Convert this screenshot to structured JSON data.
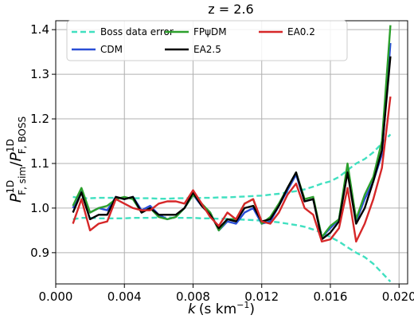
{
  "chart_data": {
    "type": "line",
    "title": "z = 2.6",
    "xlabel": "k (s km⁻¹)",
    "xlabel_parts": {
      "symbol": "k",
      "unit": "(s km",
      "exponent": "−1",
      "close": ")"
    },
    "ylabel_parts": {
      "p1": "P",
      "sup1": "1D",
      "sub1": "F, sim",
      "slash": "/",
      "p2": "P",
      "sup2": "1D",
      "sub2": "F, BOSS"
    },
    "xlim": [
      0.0,
      0.0205
    ],
    "ylim": [
      0.83,
      1.42
    ],
    "xticks": [
      0.0,
      0.004,
      0.008,
      0.012,
      0.016,
      0.02
    ],
    "xtick_labels": [
      "0.000",
      "0.004",
      "0.008",
      "0.012",
      "0.016",
      "0.020"
    ],
    "yticks": [
      0.9,
      1.0,
      1.1,
      1.2,
      1.3,
      1.4
    ],
    "ytick_labels": [
      "0.9",
      "1.0",
      "1.1",
      "1.2",
      "1.3",
      "1.4"
    ],
    "grid": true,
    "legend_position": "top",
    "x": [
      0.001,
      0.0015,
      0.002,
      0.0025,
      0.003,
      0.0035,
      0.004,
      0.0045,
      0.005,
      0.0055,
      0.006,
      0.0065,
      0.007,
      0.0075,
      0.008,
      0.0085,
      0.009,
      0.0095,
      0.01,
      0.0105,
      0.011,
      0.0115,
      0.012,
      0.0125,
      0.013,
      0.0135,
      0.014,
      0.0145,
      0.015,
      0.0155,
      0.016,
      0.0165,
      0.017,
      0.0175,
      0.018,
      0.0185,
      0.019,
      0.0195
    ],
    "series": [
      {
        "name": "Boss data error",
        "color": "#40e0c0",
        "dash": true,
        "values_upper": [
          1.025,
          1.022,
          1.022,
          1.023,
          1.023,
          1.023,
          1.023,
          1.022,
          1.022,
          1.022,
          1.021,
          1.021,
          1.022,
          1.022,
          1.022,
          1.023,
          1.023,
          1.024,
          1.024,
          1.025,
          1.026,
          1.027,
          1.028,
          1.03,
          1.032,
          1.035,
          1.038,
          1.042,
          1.048,
          1.055,
          1.06,
          1.07,
          1.085,
          1.1,
          1.11,
          1.125,
          1.145,
          1.165
        ],
        "values_lower": [
          0.975,
          0.978,
          0.978,
          0.977,
          0.977,
          0.977,
          0.977,
          0.978,
          0.978,
          0.978,
          0.979,
          0.979,
          0.978,
          0.978,
          0.978,
          0.977,
          0.977,
          0.976,
          0.976,
          0.975,
          0.974,
          0.973,
          0.972,
          0.97,
          0.968,
          0.965,
          0.962,
          0.958,
          0.952,
          0.945,
          0.935,
          0.925,
          0.912,
          0.9,
          0.89,
          0.875,
          0.855,
          0.835
        ]
      },
      {
        "name": "CDM",
        "color": "#2a4fd6",
        "values": [
          1.0,
          1.04,
          0.99,
          1.0,
          0.995,
          1.025,
          1.02,
          1.025,
          0.995,
          1.005,
          0.985,
          0.975,
          0.98,
          1.0,
          1.03,
          1.005,
          0.99,
          0.95,
          0.97,
          0.965,
          0.99,
          1.0,
          0.965,
          0.97,
          1.005,
          1.04,
          1.075,
          1.015,
          1.02,
          0.935,
          0.955,
          0.975,
          1.09,
          0.97,
          1.02,
          1.06,
          1.12,
          1.37
        ]
      },
      {
        "name": "FPψDM",
        "color": "#2ca02c",
        "values": [
          1.005,
          1.045,
          0.99,
          1.0,
          1.005,
          1.02,
          1.025,
          1.02,
          0.99,
          1.0,
          0.98,
          0.975,
          0.98,
          1.0,
          1.03,
          1.01,
          0.99,
          0.95,
          0.975,
          0.975,
          1.01,
          1.02,
          0.965,
          0.98,
          1.01,
          1.045,
          1.08,
          1.02,
          1.025,
          0.935,
          0.96,
          0.975,
          1.1,
          0.975,
          1.03,
          1.07,
          1.15,
          1.41
        ]
      },
      {
        "name": "EA2.5",
        "color": "#000000",
        "values": [
          0.99,
          1.035,
          0.975,
          0.985,
          0.985,
          1.025,
          1.02,
          1.025,
          0.99,
          1.0,
          0.985,
          0.985,
          0.985,
          1.0,
          1.035,
          1.005,
          0.985,
          0.955,
          0.975,
          0.97,
          1.0,
          1.005,
          0.97,
          0.975,
          1.005,
          1.045,
          1.08,
          1.015,
          1.02,
          0.93,
          0.945,
          0.97,
          1.08,
          0.965,
          1.0,
          1.06,
          1.13,
          1.34
        ]
      },
      {
        "name": "EA0.2",
        "color": "#d62728",
        "values": [
          0.965,
          1.02,
          0.95,
          0.965,
          0.97,
          1.02,
          1.01,
          1.0,
          0.995,
          0.995,
          1.01,
          1.015,
          1.015,
          1.01,
          1.04,
          1.01,
          0.98,
          0.96,
          0.99,
          0.975,
          1.01,
          1.02,
          0.97,
          0.965,
          0.99,
          1.03,
          1.055,
          1.0,
          0.985,
          0.925,
          0.93,
          0.955,
          1.045,
          0.925,
          0.965,
          1.02,
          1.09,
          1.25
        ]
      }
    ]
  }
}
